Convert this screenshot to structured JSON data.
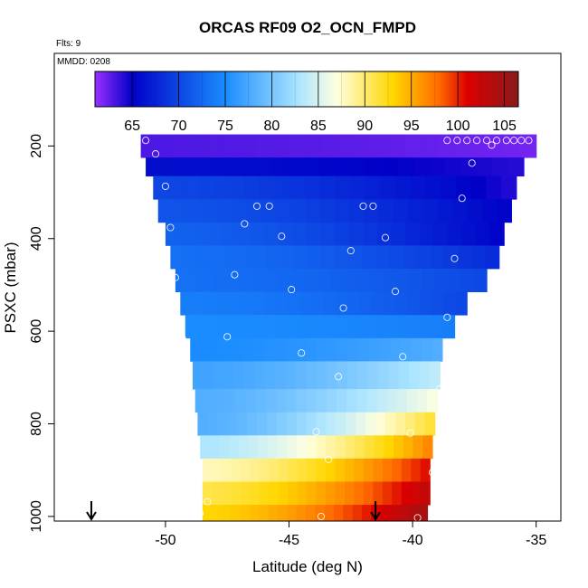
{
  "chart_data": {
    "type": "heatmap",
    "title": "ORCAS RF09 O2_OCN_FMPD",
    "flights_note": "Flts: 9",
    "date_note": "MMDD: 0208",
    "xlabel": "Latitude (deg N)",
    "ylabel": "PSXC (mbar)",
    "xlim": [
      -54.5,
      -34
    ],
    "ylim": [
      1010,
      0
    ],
    "x_ticks": [
      -50,
      -45,
      -40,
      -35
    ],
    "x_tick_labels": [
      "-50",
      "-45",
      "-40",
      "-35"
    ],
    "y_ticks": [
      200,
      400,
      600,
      800,
      1000
    ],
    "y_tick_labels": [
      "200",
      "400",
      "600",
      "800",
      "1000"
    ],
    "colorbar": {
      "vmin": 61,
      "vmax": 106.5,
      "ticks": [
        65,
        70,
        75,
        80,
        85,
        90,
        95,
        100,
        105
      ],
      "tick_labels": [
        "65",
        "70",
        "75",
        "80",
        "85",
        "90",
        "95",
        "100",
        "105"
      ],
      "colors": [
        "#9b30ff",
        "#0000c8",
        "#1a8cff",
        "#aee6ff",
        "#ffffe0",
        "#ffd700",
        "#ff6a00",
        "#dc0000",
        "#8b1a1a"
      ],
      "color_stops": [
        61,
        65,
        75,
        83,
        87,
        93,
        98,
        101,
        106.5
      ]
    },
    "rows": [
      {
        "p_top": 175,
        "p_bot": 225,
        "lat_min": -51.0,
        "lat_max": -35.0,
        "v_left": 63.0,
        "v_right": 62.0
      },
      {
        "p_top": 225,
        "p_bot": 265,
        "lat_min": -50.8,
        "lat_max": -35.5,
        "v_left": 66.0,
        "v_right": 64.0
      },
      {
        "p_top": 265,
        "p_bot": 315,
        "lat_min": -50.5,
        "lat_max": -35.8,
        "v_left": 70.0,
        "v_right": 64.0
      },
      {
        "p_top": 315,
        "p_bot": 365,
        "lat_min": -50.3,
        "lat_max": -36.0,
        "v_left": 71.0,
        "v_right": 65.0
      },
      {
        "p_top": 365,
        "p_bot": 415,
        "lat_min": -50.0,
        "lat_max": -36.3,
        "v_left": 72.0,
        "v_right": 65.0
      },
      {
        "p_top": 415,
        "p_bot": 465,
        "lat_min": -49.8,
        "lat_max": -36.5,
        "v_left": 73.0,
        "v_right": 68.0
      },
      {
        "p_top": 465,
        "p_bot": 515,
        "lat_min": -49.6,
        "lat_max": -37.0,
        "v_left": 73.0,
        "v_right": 70.0
      },
      {
        "p_top": 515,
        "p_bot": 565,
        "lat_min": -49.4,
        "lat_max": -37.8,
        "v_left": 74.0,
        "v_right": 70.0
      },
      {
        "p_top": 565,
        "p_bot": 615,
        "lat_min": -49.2,
        "lat_max": -38.3,
        "v_left": 75.0,
        "v_right": 74.0
      },
      {
        "p_top": 615,
        "p_bot": 665,
        "lat_min": -49.0,
        "lat_max": -38.8,
        "v_left": 75.0,
        "v_right": 78.0
      },
      {
        "p_top": 665,
        "p_bot": 725,
        "lat_min": -48.9,
        "lat_max": -38.9,
        "v_left": 77.0,
        "v_right": 84.0
      },
      {
        "p_top": 725,
        "p_bot": 775,
        "lat_min": -48.8,
        "lat_max": -39.0,
        "v_left": 78.0,
        "v_right": 87.0
      },
      {
        "p_top": 775,
        "p_bot": 825,
        "lat_min": -48.7,
        "lat_max": -39.1,
        "v_left": 78.0,
        "v_right": 92.0
      },
      {
        "p_top": 825,
        "p_bot": 875,
        "lat_min": -48.6,
        "lat_max": -39.2,
        "v_left": 83.0,
        "v_right": 97.0
      },
      {
        "p_top": 875,
        "p_bot": 925,
        "lat_min": -48.5,
        "lat_max": -39.3,
        "v_left": 88.0,
        "v_right": 101.0
      },
      {
        "p_top": 925,
        "p_bot": 975,
        "lat_min": -48.5,
        "lat_max": -39.3,
        "v_left": 91.0,
        "v_right": 103.0
      },
      {
        "p_top": 975,
        "p_bot": 1010,
        "lat_min": -48.5,
        "lat_max": -39.4,
        "v_left": 93.0,
        "v_right": 105.0
      }
    ],
    "points": [
      {
        "lat": -50.8,
        "p": 188
      },
      {
        "lat": -50.4,
        "p": 217
      },
      {
        "lat": -50.0,
        "p": 287
      },
      {
        "lat": -49.8,
        "p": 376
      },
      {
        "lat": -49.6,
        "p": 484
      },
      {
        "lat": -49.3,
        "p": 617
      },
      {
        "lat": -49.1,
        "p": 777
      },
      {
        "lat": -48.8,
        "p": 965
      },
      {
        "lat": -48.6,
        "p": 993
      },
      {
        "lat": -48.3,
        "p": 968
      },
      {
        "lat": -47.5,
        "p": 612
      },
      {
        "lat": -47.2,
        "p": 478
      },
      {
        "lat": -46.8,
        "p": 368
      },
      {
        "lat": -46.3,
        "p": 330
      },
      {
        "lat": -45.8,
        "p": 330
      },
      {
        "lat": -45.3,
        "p": 395
      },
      {
        "lat": -44.9,
        "p": 510
      },
      {
        "lat": -44.5,
        "p": 647
      },
      {
        "lat": -43.9,
        "p": 817
      },
      {
        "lat": -43.7,
        "p": 1000
      },
      {
        "lat": -43.4,
        "p": 877
      },
      {
        "lat": -43.0,
        "p": 698
      },
      {
        "lat": -42.8,
        "p": 550
      },
      {
        "lat": -42.5,
        "p": 426
      },
      {
        "lat": -42.0,
        "p": 330
      },
      {
        "lat": -41.6,
        "p": 330
      },
      {
        "lat": -41.1,
        "p": 398
      },
      {
        "lat": -40.7,
        "p": 514
      },
      {
        "lat": -40.4,
        "p": 655
      },
      {
        "lat": -40.1,
        "p": 820
      },
      {
        "lat": -39.8,
        "p": 1003
      },
      {
        "lat": -39.2,
        "p": 905
      },
      {
        "lat": -38.9,
        "p": 725
      },
      {
        "lat": -38.6,
        "p": 570
      },
      {
        "lat": -38.3,
        "p": 443
      },
      {
        "lat": -38.0,
        "p": 313
      },
      {
        "lat": -37.6,
        "p": 237
      },
      {
        "lat": -38.6,
        "p": 188
      },
      {
        "lat": -38.2,
        "p": 188
      },
      {
        "lat": -37.8,
        "p": 188
      },
      {
        "lat": -37.4,
        "p": 188
      },
      {
        "lat": -37.0,
        "p": 188
      },
      {
        "lat": -36.6,
        "p": 188
      },
      {
        "lat": -36.2,
        "p": 188
      },
      {
        "lat": -35.9,
        "p": 188
      },
      {
        "lat": -35.6,
        "p": 188
      },
      {
        "lat": -35.3,
        "p": 188
      },
      {
        "lat": -36.8,
        "p": 198
      }
    ],
    "arrows": [
      {
        "lat": -53.0,
        "p": 1010
      },
      {
        "lat": -41.5,
        "p": 1010
      }
    ]
  }
}
